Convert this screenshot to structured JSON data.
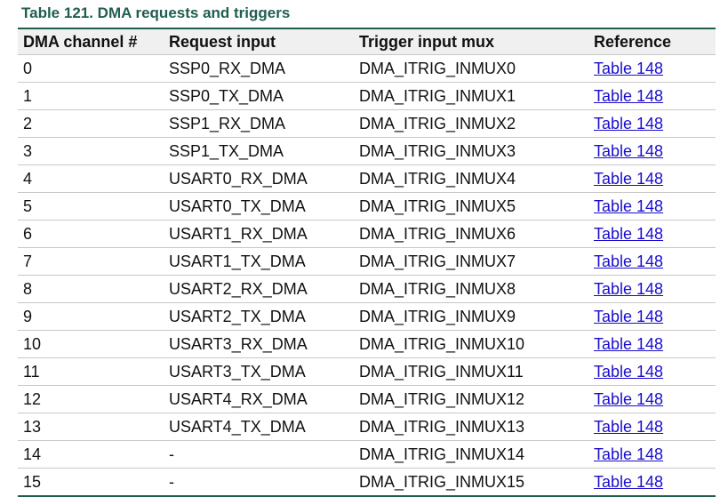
{
  "title": "Table 121.  DMA requests and triggers",
  "columns": [
    "DMA channel #",
    "Request input",
    "Trigger input mux",
    "Reference"
  ],
  "rows": [
    [
      "0",
      "SSP0_RX_DMA",
      "DMA_ITRIG_INMUX0",
      "Table 148"
    ],
    [
      "1",
      "SSP0_TX_DMA",
      "DMA_ITRIG_INMUX1",
      "Table 148"
    ],
    [
      "2",
      "SSP1_RX_DMA",
      "DMA_ITRIG_INMUX2",
      "Table 148"
    ],
    [
      "3",
      "SSP1_TX_DMA",
      "DMA_ITRIG_INMUX3",
      "Table 148"
    ],
    [
      "4",
      "USART0_RX_DMA",
      "DMA_ITRIG_INMUX4",
      "Table 148"
    ],
    [
      "5",
      "USART0_TX_DMA",
      "DMA_ITRIG_INMUX5",
      "Table 148"
    ],
    [
      "6",
      "USART1_RX_DMA",
      "DMA_ITRIG_INMUX6",
      "Table 148"
    ],
    [
      "7",
      "USART1_TX_DMA",
      "DMA_ITRIG_INMUX7",
      "Table 148"
    ],
    [
      "8",
      "USART2_RX_DMA",
      "DMA_ITRIG_INMUX8",
      "Table 148"
    ],
    [
      "9",
      "USART2_TX_DMA",
      "DMA_ITRIG_INMUX9",
      "Table 148"
    ],
    [
      "10",
      "USART3_RX_DMA",
      "DMA_ITRIG_INMUX10",
      "Table 148"
    ],
    [
      "11",
      "USART3_TX_DMA",
      "DMA_ITRIG_INMUX11",
      "Table 148"
    ],
    [
      "12",
      "USART4_RX_DMA",
      "DMA_ITRIG_INMUX12",
      "Table 148"
    ],
    [
      "13",
      "USART4_TX_DMA",
      "DMA_ITRIG_INMUX13",
      "Table 148"
    ],
    [
      "14",
      "-",
      "DMA_ITRIG_INMUX14",
      "Table 148"
    ],
    [
      "15",
      "-",
      "DMA_ITRIG_INMUX15",
      "Table 148"
    ]
  ],
  "colors": {
    "title": "#1f5e4f",
    "link": "#1a0dcc",
    "header_bg": "#f0f0f0"
  }
}
